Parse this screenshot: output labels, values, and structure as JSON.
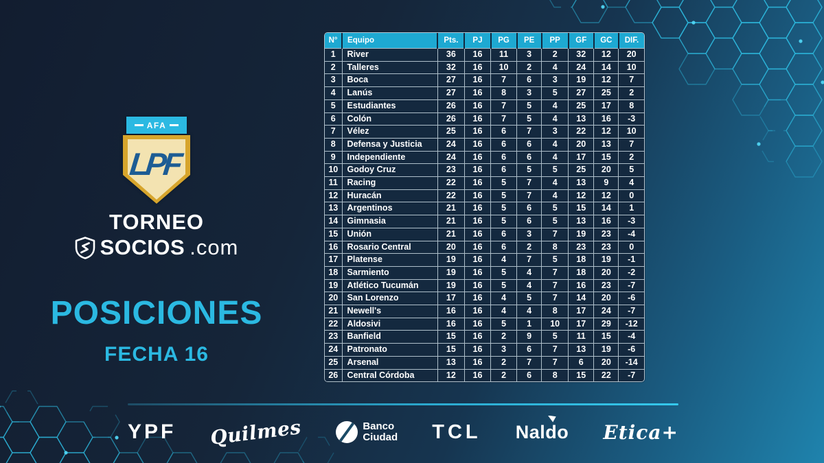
{
  "branding": {
    "afa_label": "AFA",
    "lpf_monogram": "LPF",
    "torneo": "TORNEO",
    "socios": "SOCIOS",
    "socios_suffix": ".com"
  },
  "chart_data": {
    "type": "table",
    "title": "POSICIONES",
    "subtitle": "FECHA 16",
    "columns": [
      "N°",
      "Equipo",
      "Pts.",
      "PJ",
      "PG",
      "PE",
      "PP",
      "GF",
      "GC",
      "DIF."
    ],
    "rows": [
      [
        1,
        "River",
        36,
        16,
        11,
        3,
        2,
        32,
        12,
        20
      ],
      [
        2,
        "Talleres",
        32,
        16,
        10,
        2,
        4,
        24,
        14,
        10
      ],
      [
        3,
        "Boca",
        27,
        16,
        7,
        6,
        3,
        19,
        12,
        7
      ],
      [
        4,
        "Lanús",
        27,
        16,
        8,
        3,
        5,
        27,
        25,
        2
      ],
      [
        5,
        "Estudiantes",
        26,
        16,
        7,
        5,
        4,
        25,
        17,
        8
      ],
      [
        6,
        "Colón",
        26,
        16,
        7,
        5,
        4,
        13,
        16,
        -3
      ],
      [
        7,
        "Vélez",
        25,
        16,
        6,
        7,
        3,
        22,
        12,
        10
      ],
      [
        8,
        "Defensa y Justicia",
        24,
        16,
        6,
        6,
        4,
        20,
        13,
        7
      ],
      [
        9,
        "Independiente",
        24,
        16,
        6,
        6,
        4,
        17,
        15,
        2
      ],
      [
        10,
        "Godoy Cruz",
        23,
        16,
        6,
        5,
        5,
        25,
        20,
        5
      ],
      [
        11,
        "Racing",
        22,
        16,
        5,
        7,
        4,
        13,
        9,
        4
      ],
      [
        12,
        "Huracán",
        22,
        16,
        5,
        7,
        4,
        12,
        12,
        0
      ],
      [
        13,
        "Argentinos",
        21,
        16,
        5,
        6,
        5,
        15,
        14,
        1
      ],
      [
        14,
        "Gimnasia",
        21,
        16,
        5,
        6,
        5,
        13,
        16,
        -3
      ],
      [
        15,
        "Unión",
        21,
        16,
        6,
        3,
        7,
        19,
        23,
        -4
      ],
      [
        16,
        "Rosario Central",
        20,
        16,
        6,
        2,
        8,
        23,
        23,
        0
      ],
      [
        17,
        "Platense",
        19,
        16,
        4,
        7,
        5,
        18,
        19,
        -1
      ],
      [
        18,
        "Sarmiento",
        19,
        16,
        5,
        4,
        7,
        18,
        20,
        -2
      ],
      [
        19,
        "Atlético Tucumán",
        19,
        16,
        5,
        4,
        7,
        16,
        23,
        -7
      ],
      [
        20,
        "San Lorenzo",
        17,
        16,
        4,
        5,
        7,
        14,
        20,
        -6
      ],
      [
        21,
        "Newell's",
        16,
        16,
        4,
        4,
        8,
        17,
        24,
        -7
      ],
      [
        22,
        "Aldosivi",
        16,
        16,
        5,
        1,
        10,
        17,
        29,
        -12
      ],
      [
        23,
        "Banfield",
        15,
        16,
        2,
        9,
        5,
        11,
        15,
        -4
      ],
      [
        24,
        "Patronato",
        15,
        16,
        3,
        6,
        7,
        13,
        19,
        -6
      ],
      [
        25,
        "Arsenal",
        13,
        16,
        2,
        7,
        7,
        6,
        20,
        -14
      ],
      [
        26,
        "Central Córdoba",
        12,
        16,
        2,
        6,
        8,
        15,
        22,
        -7
      ]
    ]
  },
  "sponsors": [
    {
      "name": "YPF"
    },
    {
      "name": "Quilmes"
    },
    {
      "name": "Banco Ciudad",
      "line1": "Banco",
      "line2": "Ciudad"
    },
    {
      "name": "TCL"
    },
    {
      "name": "Naldo"
    },
    {
      "name": "Etica+"
    }
  ],
  "colors": {
    "accent_cyan": "#2bb9e2",
    "table_header_cyan": "#1ea9d2",
    "cell_bg_navy": "#14293f",
    "background_navy": "#131e31",
    "background_teal": "#1f82ac",
    "shield_gold": "#d7a52c",
    "shield_cream": "#f3e3b1",
    "monogram_blue": "#1d5c94",
    "hexagon_stroke": "#2db7dc"
  }
}
